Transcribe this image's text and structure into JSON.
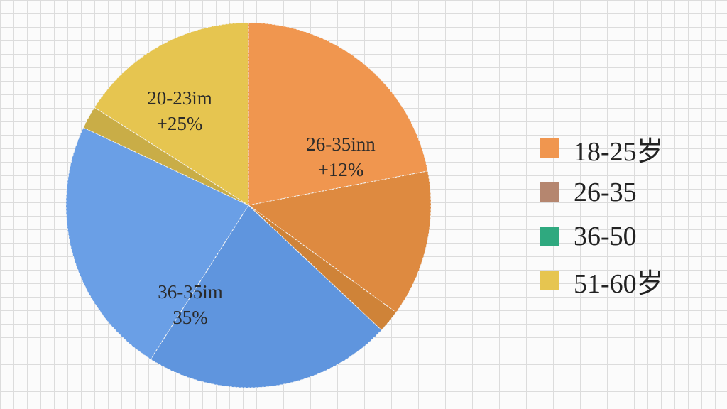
{
  "chart_data": {
    "type": "pie",
    "title": "",
    "slices": [
      {
        "label_lines": [
          "26-35inn",
          "+12%"
        ],
        "value": 22,
        "color": "#f0964f"
      },
      {
        "label_lines": [],
        "value": 13,
        "color": "#de8a40"
      },
      {
        "label_lines": [],
        "value": 2,
        "color": "#cf8338"
      },
      {
        "label_lines": [
          "36-35im",
          "35%"
        ],
        "value": 22,
        "color": "#5f95de"
      },
      {
        "label_lines": [],
        "value": 23,
        "color": "#6a9fe6"
      },
      {
        "label_lines": [],
        "value": 2,
        "color": "#c9ad47"
      },
      {
        "label_lines": [
          "20-23im",
          "+25%"
        ],
        "value": 16,
        "color": "#e6c550"
      }
    ],
    "legend": {
      "position": "right",
      "items": [
        {
          "label": "18-25岁",
          "color": "#f0964f"
        },
        {
          "label": "26-35",
          "color": "#b5866f"
        },
        {
          "label": "36-50",
          "color": "#2fa97f"
        },
        {
          "label": "51-60岁",
          "color": "#e6c550"
        }
      ]
    }
  }
}
